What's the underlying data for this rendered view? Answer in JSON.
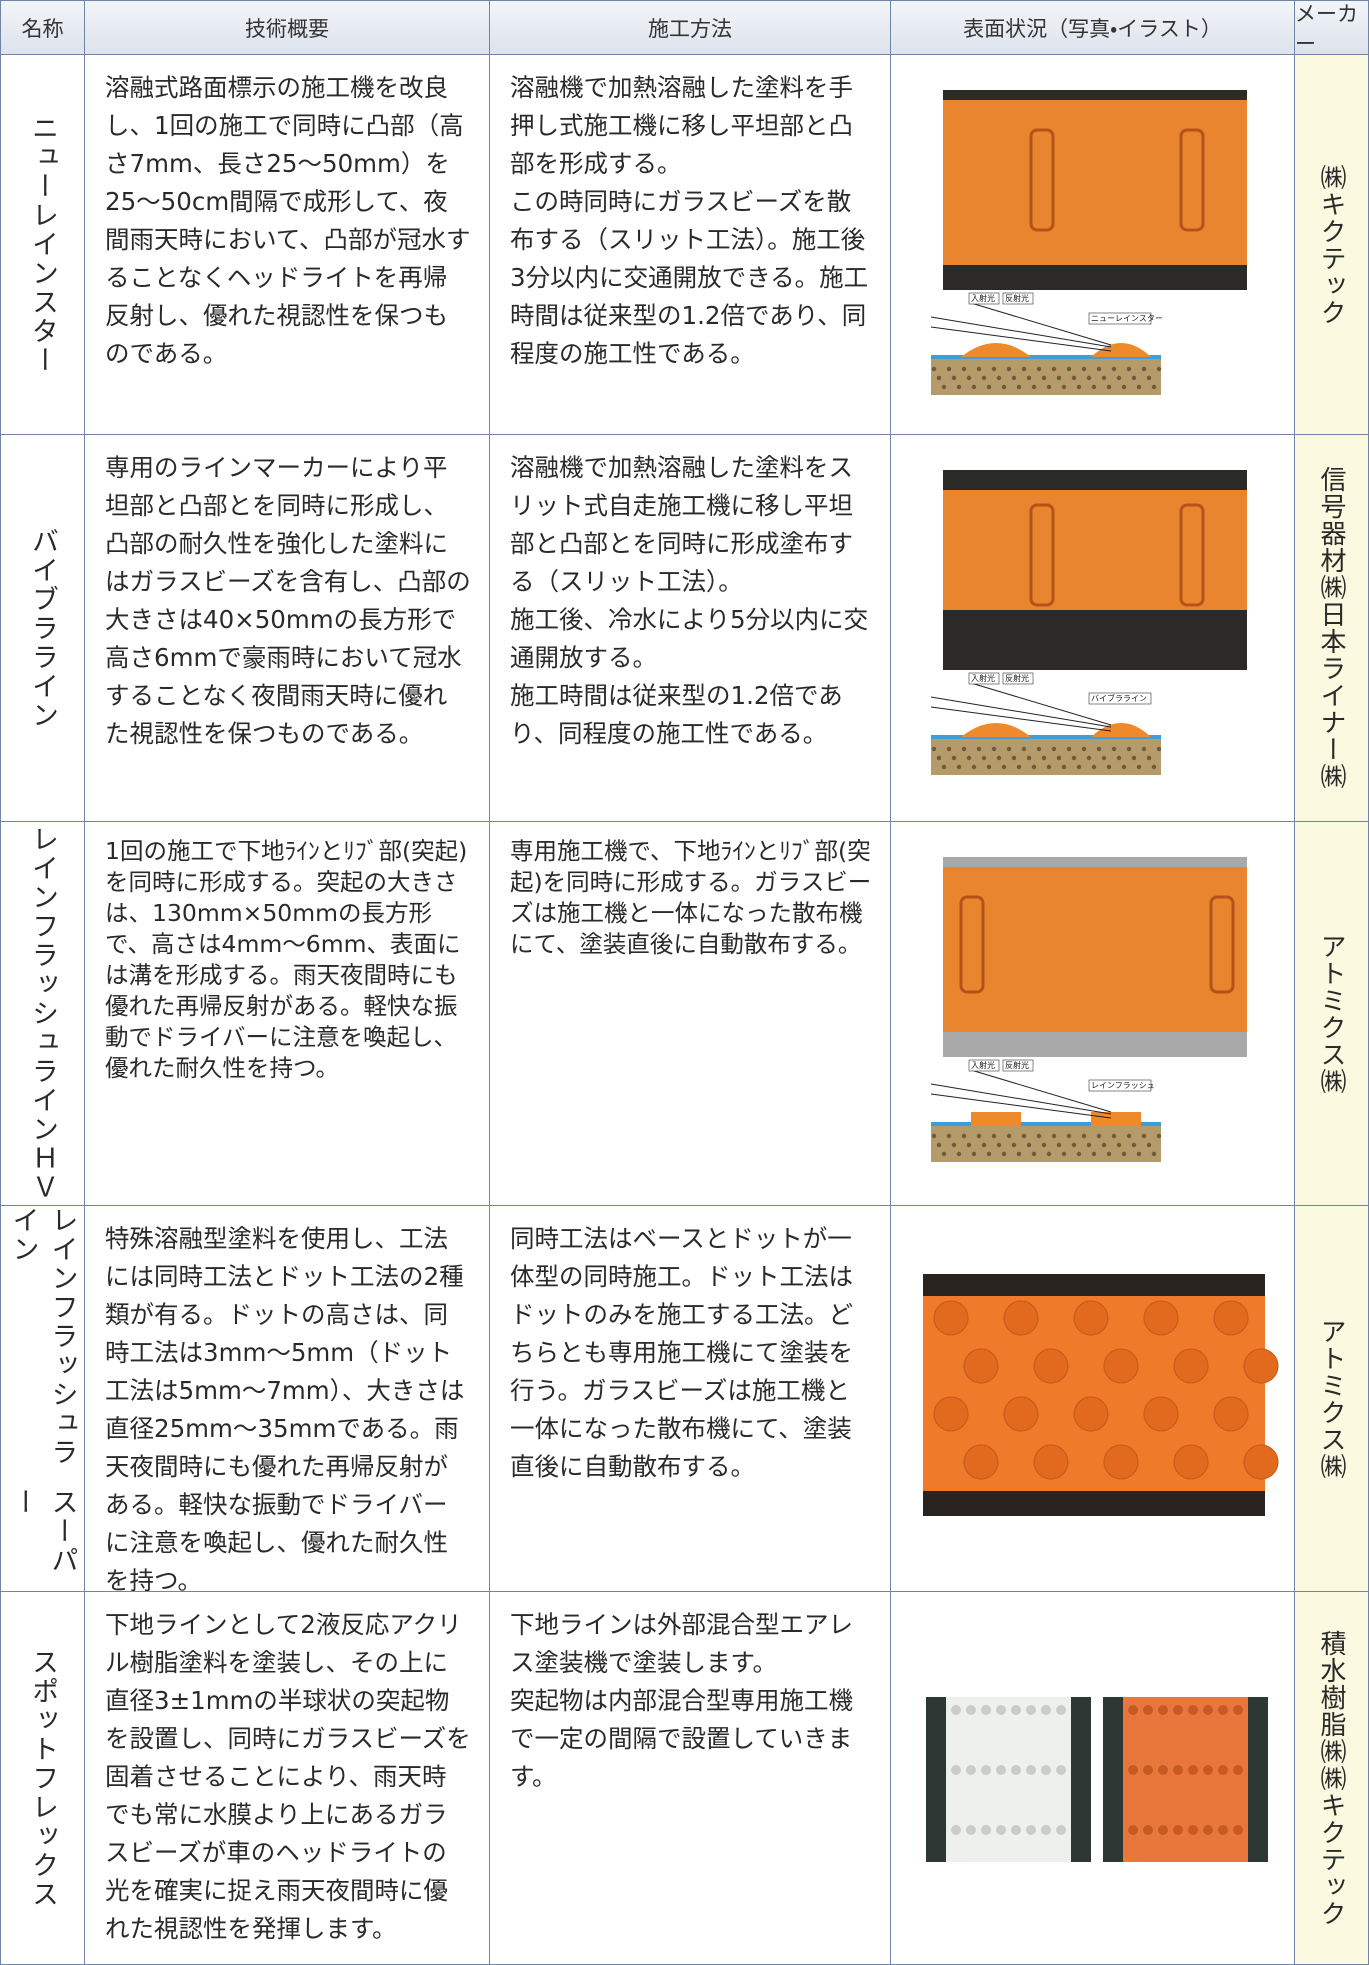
{
  "header": [
    "名称",
    "技術概要",
    "施工方法",
    "表面状況（写真・イラスト）",
    "メーカー"
  ],
  "rows": [
    {
      "name": [
        "ニューレインスター"
      ],
      "overview": [
        "溶融式路面標示の施工機を改良し、1回の施工で同時に凸部（高さ7mm、長さ25～50mm）を25～50cm間隔で成形して、夜間雨天時において、凸部が冠水することなくヘッドライトを再帰反射し、優れた視認性を保つものである。"
      ],
      "method": [
        "溶融機で加熱溶融した塗料を手押し式施工機に移し平坦部と凸部を形成する。",
        "この時同時にガラスビーズを散布する（スリット工法）。施工後3分以内に交通開放できる。施工時間は従来型の1.2倍であり、同程度の施工性である。"
      ],
      "diagram": {
        "incident": "入射光",
        "reflected": "反射光",
        "product": "ニューレインスター"
      },
      "maker": [
        "㈱キクテック"
      ]
    },
    {
      "name": [
        "バイブラライン"
      ],
      "overview": [
        "専用のラインマーカーにより平坦部と凸部とを同時に形成し、凸部の耐久性を強化した塗料にはガラスビーズを含有し、凸部の大きさは40×50mmの長方形で高さ6mmで豪雨時において冠水することなく夜間雨天時に優れた視認性を保つものである。"
      ],
      "method": [
        "溶融機で加熱溶融した塗料をスリット式自走施工機に移し平坦部と凸部とを同時に形成塗布する（スリット工法）。",
        "施工後、冷水により5分以内に交通開放する。",
        "施工時間は従来型の1.2倍であり、同程度の施工性である。"
      ],
      "diagram": {
        "incident": "入射光",
        "reflected": "反射光",
        "product": "バイブラライン"
      },
      "maker": [
        "信号器材㈱",
        "日本ライナー㈱"
      ]
    },
    {
      "name": [
        "レインフラッシュラインＨＶ"
      ],
      "overview": [
        "1回の施工で下地ﾗｲﾝとﾘﾌﾞ部(突起)を同時に形成する。突起の大きさは、130mm×50mmの長方形で、高さは4mm～6mm、表面には溝を形成する。雨天夜間時にも優れた再帰反射がある。軽快な振動でドライバーに注意を喚起し、優れた耐久性を持つ。"
      ],
      "method": [
        "専用施工機で、下地ﾗｲﾝとﾘﾌﾞ部(突起)を同時に形成する。ガラスビーズは施工機と一体になった散布機にて、塗装直後に自動散布する。"
      ],
      "diagram": {
        "incident": "入射光",
        "reflected": "反射光",
        "product": "レインフラッシュ"
      },
      "maker": [
        "アトミクス㈱"
      ]
    },
    {
      "name": [
        "レインフラッシュライン",
        "スーパー"
      ],
      "overview": [
        "特殊溶融型塗料を使用し、工法には同時工法とドット工法の2種類が有る。ドットの高さは、同時工法は3mm～5mm（ドット工法は5mm～7mm）、大きさは直径25mm～35mmである。雨天夜間時にも優れた再帰反射がある。軽快な振動でドライバーに注意を喚起し、優れた耐久性を持つ。"
      ],
      "method": [
        "同時工法はベースとドットが一体型の同時施工。ドット工法はドットのみを施工する工法。どちらとも専用施工機にて塗装を行う。ガラスビーズは施工機と一体になった散布機にて、塗装直後に自動散布する。"
      ],
      "maker": [
        "アトミクス㈱"
      ]
    },
    {
      "name": [
        "スポットフレックス"
      ],
      "overview": [
        "下地ラインとして2液反応アクリル樹脂塗料を塗装し、その上に直径3±1mmの半球状の突起物を設置し、同時にガラスビーズを固着させることにより、雨天時でも常に水膜より上にあるガラスビーズが車のヘッドライトの光を確実に捉え雨天夜間時に優れた視認性を発揮します。"
      ],
      "method": [
        "下地ラインは外部混合型エアレス塗装機で塗装します。",
        "突起物は内部混合型専用施工機で一定の間隔で設置していきます。"
      ],
      "maker": [
        "積水樹脂㈱",
        "㈱キクテック"
      ]
    }
  ]
}
